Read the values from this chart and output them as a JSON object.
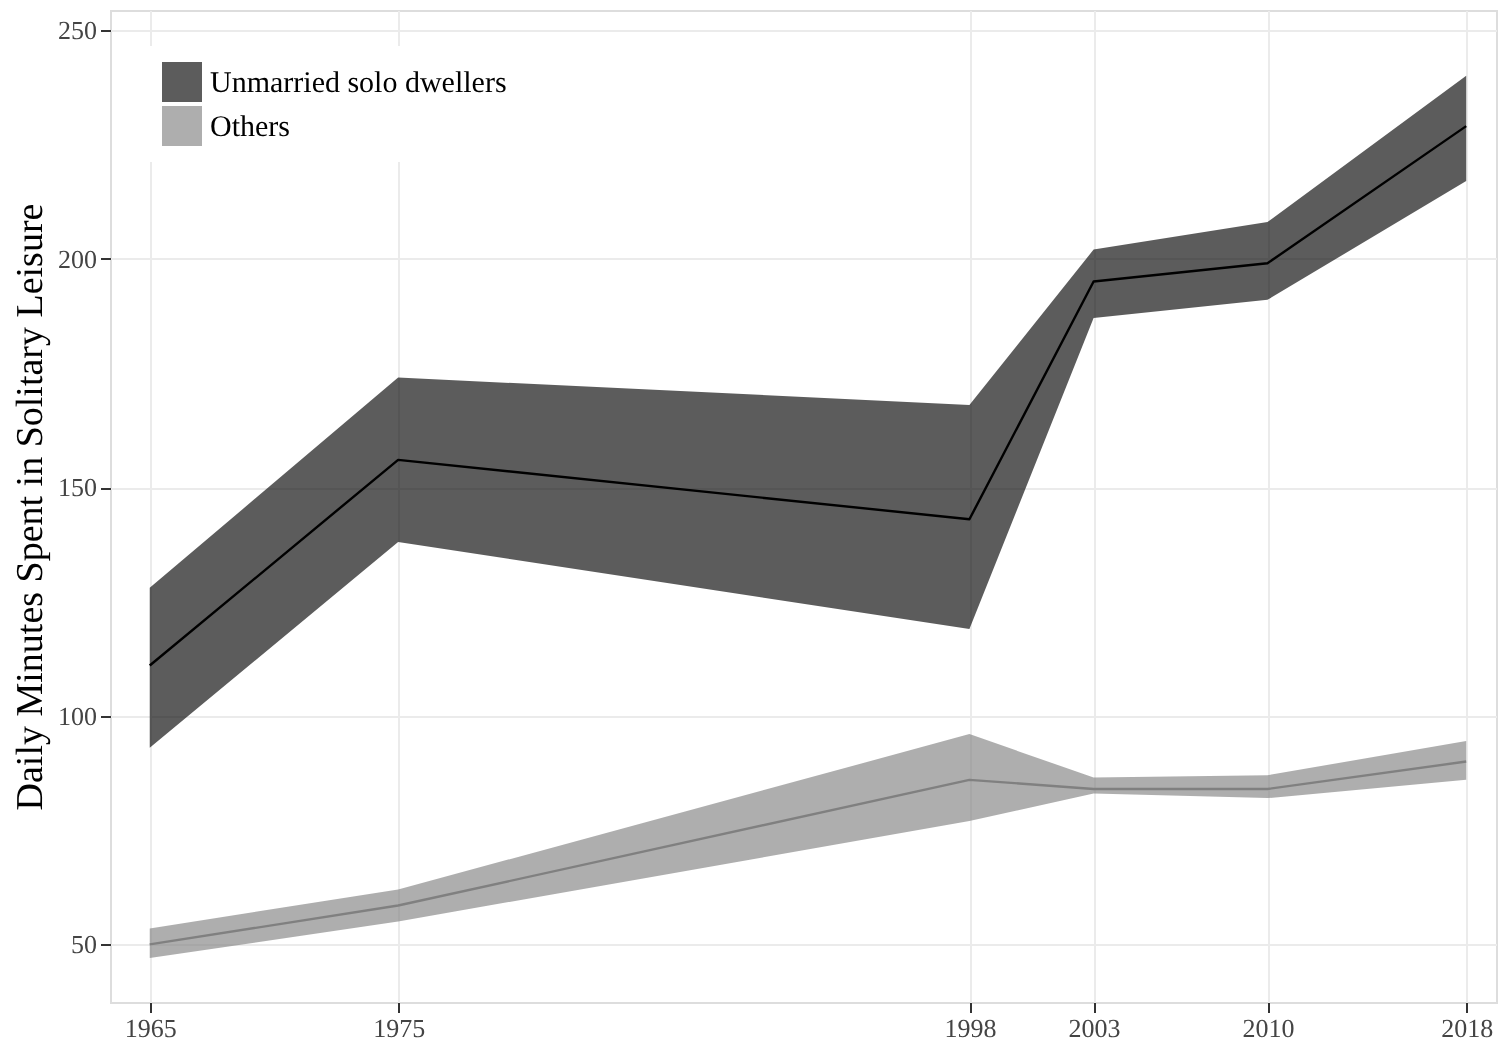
{
  "chart_data": {
    "type": "line",
    "ylabel": "Daily Minutes Spent in Solitary Leisure",
    "x": [
      1965,
      1975,
      1998,
      2003,
      2010,
      2018
    ],
    "series": [
      {
        "name": "Unmarried solo dwellers",
        "color": "#000000",
        "values": [
          111,
          156,
          143,
          195,
          199,
          229
        ],
        "lower": [
          93,
          138,
          119,
          187,
          191,
          217
        ],
        "upper": [
          128,
          174,
          168,
          202,
          208,
          240
        ]
      },
      {
        "name": "Others",
        "color": "#808080",
        "values": [
          50,
          58.5,
          86,
          84,
          84,
          90
        ],
        "lower": [
          47,
          55,
          77,
          83,
          82,
          86
        ],
        "upper": [
          53.5,
          62,
          96,
          86.5,
          87,
          94.5
        ]
      }
    ],
    "xlim": [
      1963.4,
      2019.2
    ],
    "xticks": [
      1965,
      1975,
      1998,
      2003,
      2010,
      2018
    ],
    "ylim": [
      37.4,
      254.4
    ],
    "yticks": [
      50,
      100,
      150,
      200,
      250
    ],
    "grid": true,
    "legend": "top left"
  }
}
